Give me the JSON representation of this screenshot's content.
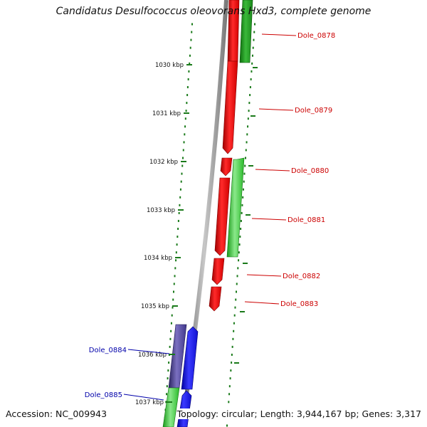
{
  "genome": {
    "title": "Candidatus Desulfococcus oleovorans Hxd3, complete genome",
    "accession_label": "Accession: NC_009943",
    "stats_label": "Topology: circular; Length: 3,944,167 bp; Genes: 3,317"
  },
  "colors": {
    "backbone": "#8a8a8a",
    "forward_gene": "#ff1010",
    "reverse_gene": "#2ec82e",
    "blue_gene": "#1414f0",
    "purple_gene": "#4a3f90",
    "tick": "#1a7a1a",
    "label_red": "#cc0000",
    "label_blue": "#0000aa"
  },
  "scale_ticks": [
    {
      "label": "1030 kbp"
    },
    {
      "label": "1031 kbp"
    },
    {
      "label": "1032 kbp"
    },
    {
      "label": "1033 kbp"
    },
    {
      "label": "1034 kbp"
    },
    {
      "label": "1035 kbp"
    },
    {
      "label": "1036 kbp"
    },
    {
      "label": "1037 kbp"
    }
  ],
  "gene_labels": [
    {
      "name": "Dole_0878",
      "color": "label_red"
    },
    {
      "name": "Dole_0879",
      "color": "label_red"
    },
    {
      "name": "Dole_0880",
      "color": "label_red"
    },
    {
      "name": "Dole_0881",
      "color": "label_red"
    },
    {
      "name": "Dole_0882",
      "color": "label_red"
    },
    {
      "name": "Dole_0883",
      "color": "label_red"
    },
    {
      "name": "Dole_0884",
      "color": "label_blue"
    },
    {
      "name": "Dole_0885",
      "color": "label_blue"
    }
  ]
}
